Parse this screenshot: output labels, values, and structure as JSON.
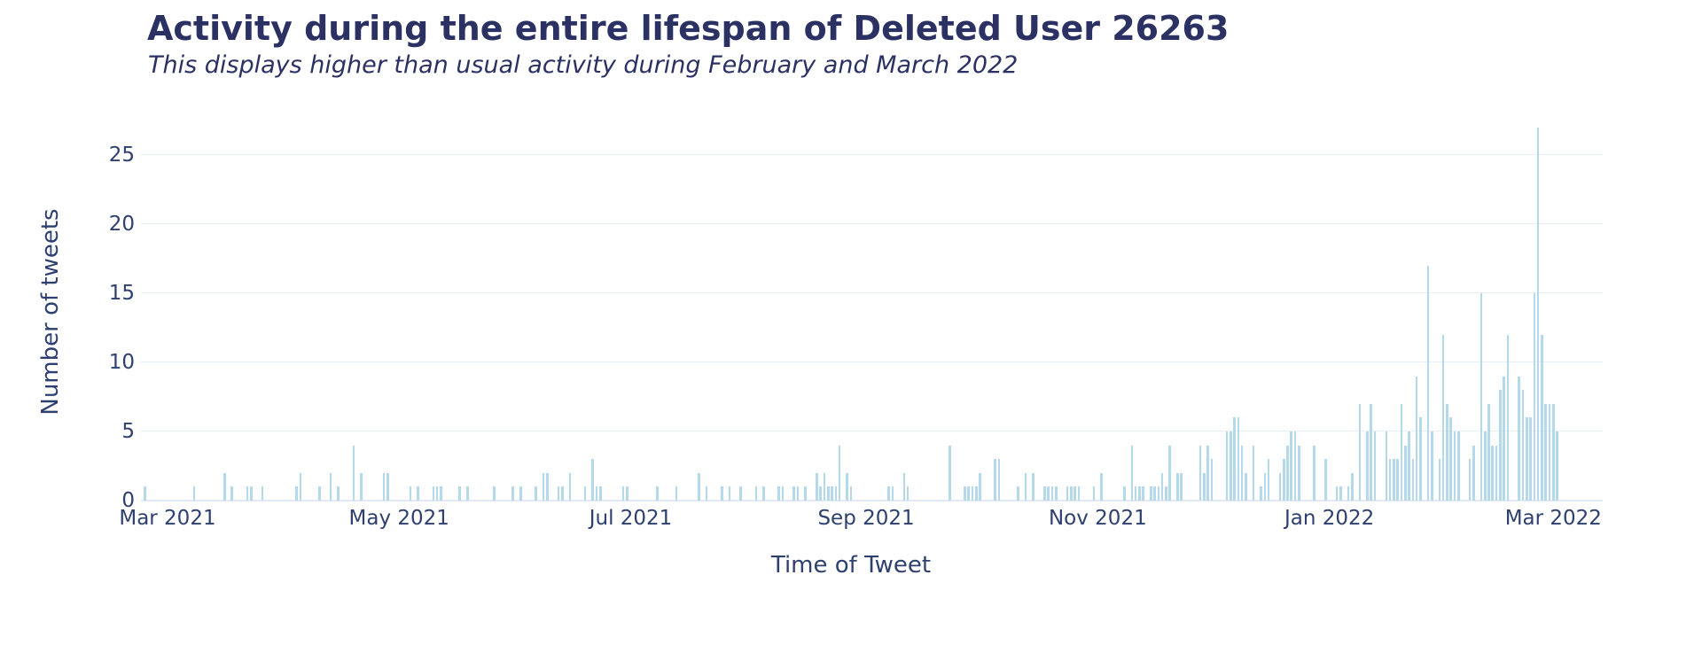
{
  "header": {
    "title": "Activity during the entire lifespan of Deleted User 26263",
    "subtitle": "This displays higher than usual activity during February and March 2022"
  },
  "colors": {
    "title_text": "#2b3162",
    "axis_text": "#2e4070",
    "bar": "#b4d9ea",
    "gridline": "#e8edf7",
    "zero_line": "#e4eaf5",
    "background": "#ffffff"
  },
  "chart_data": {
    "type": "bar",
    "title": "Activity during the entire lifespan of Deleted User 26263",
    "subtitle": "This displays higher than usual activity during February and March 2022",
    "xlabel": "Time of Tweet",
    "ylabel": "Number of tweets",
    "legend": "none",
    "grid": "horizontal-only",
    "y_ticks": [
      0,
      5,
      10,
      15,
      20,
      25
    ],
    "y_max": 29.8,
    "ylim": [
      0,
      29.8
    ],
    "x_range": [
      "2021-02-22",
      "2022-03-14"
    ],
    "x_ticks": [
      {
        "label": "Mar 2021",
        "date": "2021-03-01"
      },
      {
        "label": "May 2021",
        "date": "2021-05-01"
      },
      {
        "label": "Jul 2021",
        "date": "2021-07-01"
      },
      {
        "label": "Sep 2021",
        "date": "2021-09-01"
      },
      {
        "label": "Nov 2021",
        "date": "2021-11-01"
      },
      {
        "label": "Jan 2022",
        "date": "2022-01-01"
      },
      {
        "label": "Mar 2022",
        "date": "2022-03-01"
      }
    ],
    "points": [
      [
        "2021-02-23",
        1
      ],
      [
        "2021-03-08",
        1
      ],
      [
        "2021-03-16",
        2
      ],
      [
        "2021-03-18",
        1
      ],
      [
        "2021-03-22",
        1
      ],
      [
        "2021-03-23",
        1
      ],
      [
        "2021-03-26",
        1
      ],
      [
        "2021-04-04",
        1
      ],
      [
        "2021-04-05",
        2
      ],
      [
        "2021-04-10",
        1
      ],
      [
        "2021-04-13",
        2
      ],
      [
        "2021-04-15",
        1
      ],
      [
        "2021-04-19",
        4
      ],
      [
        "2021-04-21",
        2
      ],
      [
        "2021-04-27",
        2
      ],
      [
        "2021-04-28",
        2
      ],
      [
        "2021-05-04",
        1
      ],
      [
        "2021-05-06",
        1
      ],
      [
        "2021-05-10",
        1
      ],
      [
        "2021-05-11",
        1
      ],
      [
        "2021-05-12",
        1
      ],
      [
        "2021-05-17",
        1
      ],
      [
        "2021-05-19",
        1
      ],
      [
        "2021-05-26",
        1
      ],
      [
        "2021-05-31",
        1
      ],
      [
        "2021-06-02",
        1
      ],
      [
        "2021-06-06",
        1
      ],
      [
        "2021-06-08",
        2
      ],
      [
        "2021-06-09",
        2
      ],
      [
        "2021-06-12",
        1
      ],
      [
        "2021-06-13",
        1
      ],
      [
        "2021-06-15",
        2
      ],
      [
        "2021-06-19",
        1
      ],
      [
        "2021-06-21",
        3
      ],
      [
        "2021-06-22",
        1
      ],
      [
        "2021-06-23",
        1
      ],
      [
        "2021-06-29",
        1
      ],
      [
        "2021-06-30",
        1
      ],
      [
        "2021-07-08",
        1
      ],
      [
        "2021-07-13",
        1
      ],
      [
        "2021-07-19",
        2
      ],
      [
        "2021-07-21",
        1
      ],
      [
        "2021-07-25",
        1
      ],
      [
        "2021-07-27",
        1
      ],
      [
        "2021-07-30",
        1
      ],
      [
        "2021-08-03",
        1
      ],
      [
        "2021-08-05",
        1
      ],
      [
        "2021-08-09",
        1
      ],
      [
        "2021-08-10",
        1
      ],
      [
        "2021-08-13",
        1
      ],
      [
        "2021-08-14",
        1
      ],
      [
        "2021-08-16",
        1
      ],
      [
        "2021-08-19",
        2
      ],
      [
        "2021-08-20",
        1
      ],
      [
        "2021-08-21",
        2
      ],
      [
        "2021-08-22",
        1
      ],
      [
        "2021-08-23",
        1
      ],
      [
        "2021-08-24",
        1
      ],
      [
        "2021-08-25",
        4
      ],
      [
        "2021-08-27",
        2
      ],
      [
        "2021-08-28",
        1
      ],
      [
        "2021-09-07",
        1
      ],
      [
        "2021-09-08",
        1
      ],
      [
        "2021-09-11",
        2
      ],
      [
        "2021-09-12",
        1
      ],
      [
        "2021-09-23",
        4
      ],
      [
        "2021-09-27",
        1
      ],
      [
        "2021-09-28",
        1
      ],
      [
        "2021-09-29",
        1
      ],
      [
        "2021-09-30",
        1
      ],
      [
        "2021-10-01",
        2
      ],
      [
        "2021-10-05",
        3
      ],
      [
        "2021-10-06",
        3
      ],
      [
        "2021-10-11",
        1
      ],
      [
        "2021-10-13",
        2
      ],
      [
        "2021-10-15",
        2
      ],
      [
        "2021-10-18",
        1
      ],
      [
        "2021-10-19",
        1
      ],
      [
        "2021-10-20",
        1
      ],
      [
        "2021-10-21",
        1
      ],
      [
        "2021-10-24",
        1
      ],
      [
        "2021-10-25",
        1
      ],
      [
        "2021-10-26",
        1
      ],
      [
        "2021-10-27",
        1
      ],
      [
        "2021-10-31",
        1
      ],
      [
        "2021-11-02",
        2
      ],
      [
        "2021-11-08",
        1
      ],
      [
        "2021-11-10",
        4
      ],
      [
        "2021-11-11",
        1
      ],
      [
        "2021-11-12",
        1
      ],
      [
        "2021-11-13",
        1
      ],
      [
        "2021-11-15",
        1
      ],
      [
        "2021-11-16",
        1
      ],
      [
        "2021-11-17",
        1
      ],
      [
        "2021-11-18",
        2
      ],
      [
        "2021-11-19",
        1
      ],
      [
        "2021-11-20",
        4
      ],
      [
        "2021-11-22",
        2
      ],
      [
        "2021-11-23",
        2
      ],
      [
        "2021-11-28",
        4
      ],
      [
        "2021-11-29",
        2
      ],
      [
        "2021-11-30",
        4
      ],
      [
        "2021-12-01",
        3
      ],
      [
        "2021-12-05",
        5
      ],
      [
        "2021-12-06",
        5
      ],
      [
        "2021-12-07",
        6
      ],
      [
        "2021-12-08",
        6
      ],
      [
        "2021-12-09",
        4
      ],
      [
        "2021-12-10",
        2
      ],
      [
        "2021-12-12",
        4
      ],
      [
        "2021-12-14",
        1
      ],
      [
        "2021-12-15",
        2
      ],
      [
        "2021-12-16",
        3
      ],
      [
        "2021-12-19",
        2
      ],
      [
        "2021-12-20",
        3
      ],
      [
        "2021-12-21",
        4
      ],
      [
        "2021-12-22",
        5
      ],
      [
        "2021-12-23",
        5
      ],
      [
        "2021-12-24",
        4
      ],
      [
        "2021-12-28",
        4
      ],
      [
        "2021-12-31",
        3
      ],
      [
        "2022-01-03",
        1
      ],
      [
        "2022-01-04",
        1
      ],
      [
        "2022-01-06",
        1
      ],
      [
        "2022-01-07",
        2
      ],
      [
        "2022-01-09",
        7
      ],
      [
        "2022-01-11",
        5
      ],
      [
        "2022-01-12",
        7
      ],
      [
        "2022-01-13",
        5
      ],
      [
        "2022-01-16",
        5
      ],
      [
        "2022-01-17",
        3
      ],
      [
        "2022-01-18",
        3
      ],
      [
        "2022-01-19",
        3
      ],
      [
        "2022-01-20",
        7
      ],
      [
        "2022-01-21",
        4
      ],
      [
        "2022-01-22",
        5
      ],
      [
        "2022-01-23",
        3
      ],
      [
        "2022-01-24",
        9
      ],
      [
        "2022-01-25",
        6
      ],
      [
        "2022-01-27",
        17
      ],
      [
        "2022-01-28",
        5
      ],
      [
        "2022-01-30",
        3
      ],
      [
        "2022-01-31",
        12
      ],
      [
        "2022-02-01",
        7
      ],
      [
        "2022-02-02",
        6
      ],
      [
        "2022-02-03",
        5
      ],
      [
        "2022-02-04",
        5
      ],
      [
        "2022-02-07",
        3
      ],
      [
        "2022-02-08",
        4
      ],
      [
        "2022-02-10",
        15
      ],
      [
        "2022-02-11",
        5
      ],
      [
        "2022-02-12",
        7
      ],
      [
        "2022-02-13",
        4
      ],
      [
        "2022-02-14",
        4
      ],
      [
        "2022-02-15",
        8
      ],
      [
        "2022-02-16",
        9
      ],
      [
        "2022-02-17",
        12
      ],
      [
        "2022-02-20",
        9
      ],
      [
        "2022-02-21",
        8
      ],
      [
        "2022-02-22",
        6
      ],
      [
        "2022-02-23",
        6
      ],
      [
        "2022-02-24",
        15
      ],
      [
        "2022-02-25",
        27
      ],
      [
        "2022-02-26",
        12
      ],
      [
        "2022-02-27",
        7
      ],
      [
        "2022-02-28",
        7
      ],
      [
        "2022-03-01",
        7
      ],
      [
        "2022-03-02",
        5
      ]
    ]
  }
}
